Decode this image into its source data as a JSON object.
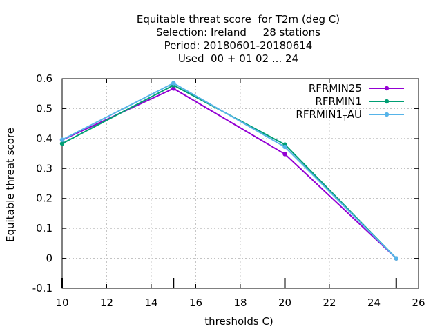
{
  "chart_data": {
    "type": "line",
    "title_lines": [
      "Equitable threat score  for T2m (deg C)",
      "Selection: Ireland     28 stations",
      "Period: 20180601-20180614",
      "Used  00 + 01 02 ... 24"
    ],
    "xlabel": "thresholds C)",
    "ylabel": "Equitable threat score",
    "xlim": [
      10,
      26
    ],
    "ylim": [
      -0.1,
      0.6
    ],
    "xticks": [
      10,
      12,
      14,
      16,
      18,
      20,
      22,
      24,
      26
    ],
    "yticks": [
      -0.1,
      0,
      0.1,
      0.2,
      0.3,
      0.4,
      0.5,
      0.6
    ],
    "xtick_labels": [
      "10",
      "12",
      "14",
      "16",
      "18",
      "20",
      "22",
      "24",
      "26"
    ],
    "ytick_labels": [
      "-0.1",
      "0",
      "0.1",
      "0.2",
      "0.3",
      "0.4",
      "0.5",
      "0.6"
    ],
    "grid": true,
    "legend_position": "top-right",
    "threshold_markers": [
      10,
      15,
      20,
      25
    ],
    "x": [
      10,
      15,
      20,
      25
    ],
    "series": [
      {
        "name": "RFRMIN25",
        "color": "#9400d3",
        "values": [
          0.395,
          0.567,
          0.348,
          0.0
        ]
      },
      {
        "name": "RFRMIN1",
        "color": "#009e73",
        "values": [
          0.383,
          0.578,
          0.38,
          0.0
        ]
      },
      {
        "name": "RFRMIN1_TAU",
        "color": "#56b4e9",
        "values": [
          0.396,
          0.585,
          0.372,
          0.0
        ]
      }
    ]
  }
}
